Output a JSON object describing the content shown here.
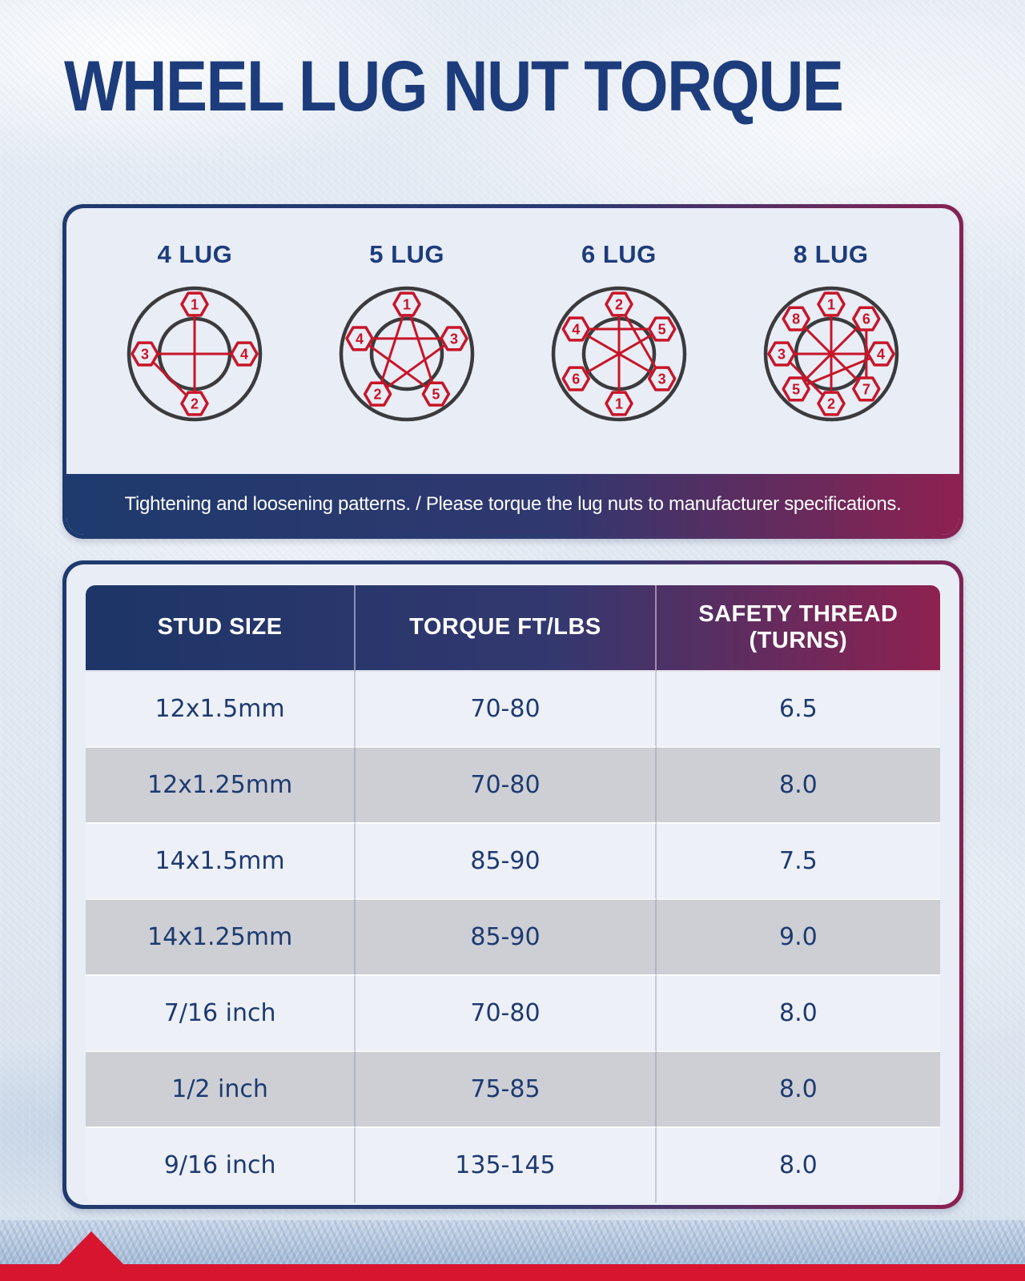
{
  "title": "WHEEL LUG NUT TORQUE",
  "panel": {
    "caption": "Tightening and loosening patterns. / Please torque the lug nuts to manufacturer specifications."
  },
  "lug_patterns": [
    {
      "label": "4 LUG",
      "nuts": [
        {
          "num": 1,
          "angle_deg": 0
        },
        {
          "num": 2,
          "angle_deg": 180
        },
        {
          "num": 3,
          "angle_deg": 270
        },
        {
          "num": 4,
          "angle_deg": 90
        }
      ],
      "tighten_sequence": [
        1,
        2,
        3,
        4
      ]
    },
    {
      "label": "5 LUG",
      "nuts": [
        {
          "num": 1,
          "angle_deg": 0
        },
        {
          "num": 3,
          "angle_deg": 72
        },
        {
          "num": 5,
          "angle_deg": 144
        },
        {
          "num": 2,
          "angle_deg": 216
        },
        {
          "num": 4,
          "angle_deg": 288
        }
      ],
      "tighten_sequence": [
        1,
        2,
        3,
        4,
        5,
        1
      ]
    },
    {
      "label": "6 LUG",
      "nuts": [
        {
          "num": 2,
          "angle_deg": 0
        },
        {
          "num": 5,
          "angle_deg": 60
        },
        {
          "num": 3,
          "angle_deg": 120
        },
        {
          "num": 1,
          "angle_deg": 180
        },
        {
          "num": 6,
          "angle_deg": 240
        },
        {
          "num": 4,
          "angle_deg": 300
        }
      ],
      "tighten_sequence": [
        1,
        2,
        3,
        4,
        5,
        6
      ]
    },
    {
      "label": "8 LUG",
      "nuts": [
        {
          "num": 1,
          "angle_deg": 0
        },
        {
          "num": 6,
          "angle_deg": 45
        },
        {
          "num": 4,
          "angle_deg": 90
        },
        {
          "num": 7,
          "angle_deg": 135
        },
        {
          "num": 2,
          "angle_deg": 180
        },
        {
          "num": 5,
          "angle_deg": 225
        },
        {
          "num": 3,
          "angle_deg": 270
        },
        {
          "num": 8,
          "angle_deg": 315
        }
      ],
      "tighten_sequence": [
        1,
        2,
        3,
        4,
        5,
        6,
        7,
        8
      ]
    }
  ],
  "table": {
    "headers": [
      "STUD SIZE",
      "TORQUE FT/LBS",
      "SAFETY THREAD (TURNS)"
    ],
    "rows": [
      [
        "12x1.5mm",
        "70-80",
        "6.5"
      ],
      [
        "12x1.25mm",
        "70-80",
        "8.0"
      ],
      [
        "14x1.5mm",
        "85-90",
        "7.5"
      ],
      [
        "14x1.25mm",
        "85-90",
        "9.0"
      ],
      [
        "7/16 inch",
        "70-80",
        "8.0"
      ],
      [
        "1/2 inch",
        "75-85",
        "8.0"
      ],
      [
        "9/16 inch",
        "135-145",
        "8.0"
      ]
    ]
  },
  "colors": {
    "title_navy": "#1d3c7c",
    "lug_red": "#c81528",
    "circle_outline": "#3b3b3e",
    "panel_bg": "#e9edf6",
    "gradient_navy": "#1e3a6e",
    "gradient_maroon": "#8e2150",
    "row_light": "#edf0f7",
    "row_gray": "#cdcfd5",
    "cell_text_navy": "#1d3a70",
    "bottom_band_red": "#d8152f"
  }
}
